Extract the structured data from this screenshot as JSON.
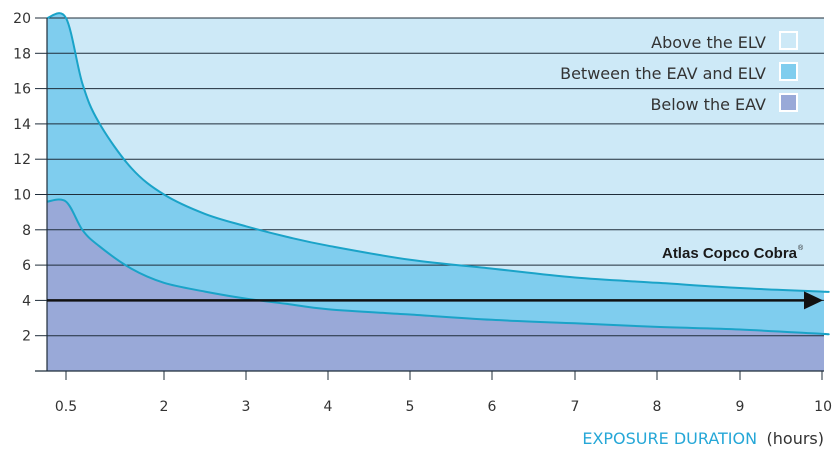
{
  "chart_data": {
    "type": "area",
    "xlabel": "EXPOSURE DURATION",
    "xlabel_unit": "(hours)",
    "ylabel": "",
    "x_ticks": [
      0.5,
      2,
      3,
      4,
      5,
      6,
      7,
      8,
      9,
      10
    ],
    "x_tick_labels": [
      "0.5",
      "2",
      "3",
      "4",
      "5",
      "6",
      "7",
      "8",
      "9",
      "10"
    ],
    "y_ticks": [
      2,
      4,
      6,
      8,
      10,
      12,
      14,
      16,
      18,
      20
    ],
    "y_tick_labels": [
      "2",
      "4",
      "6",
      "8",
      "10",
      "12",
      "14",
      "16",
      "18",
      "20"
    ],
    "ylim": [
      0,
      20
    ],
    "xlim": [
      0.5,
      10
    ],
    "grid": true,
    "legend_position": "top-right",
    "series": [
      {
        "name": "Above the ELV",
        "region": "above ELV curve",
        "color": "#cde9f7"
      },
      {
        "name": "Between the EAV and ELV",
        "region": "between EAV and ELV curves",
        "color": "#7fcdee",
        "curve": {
          "x": [
            0.5,
            0.75,
            1,
            1.5,
            2,
            2.5,
            3,
            3.5,
            4,
            5,
            6,
            7,
            8,
            9,
            10
          ],
          "y": [
            20,
            16.3,
            14.1,
            11.5,
            10,
            8.9,
            8.2,
            7.6,
            7.1,
            6.3,
            5.8,
            5.3,
            5.0,
            4.7,
            4.5
          ]
        }
      },
      {
        "name": "Below the EAV",
        "region": "below EAV curve",
        "color": "#99a9d8",
        "curve": {
          "x": [
            0.5,
            0.75,
            1,
            1.5,
            2,
            2.5,
            3,
            3.5,
            4,
            5,
            6,
            7,
            8,
            9,
            10
          ],
          "y": [
            9.6,
            8.0,
            7.1,
            5.8,
            5.0,
            4.5,
            4.1,
            3.8,
            3.5,
            3.2,
            2.9,
            2.7,
            2.5,
            2.35,
            2.1
          ]
        }
      }
    ],
    "annotation": {
      "label": "Atlas Copco Cobra",
      "mark": "®",
      "value": 4,
      "style": "horizontal arrow"
    }
  },
  "colors": {
    "above_elv": "#cde9f7",
    "between": "#7fcdee",
    "below_eav": "#99a9d8",
    "curve_line": "#1aa3c8",
    "grid": "#1f2d3a",
    "arrow": "#111111"
  }
}
